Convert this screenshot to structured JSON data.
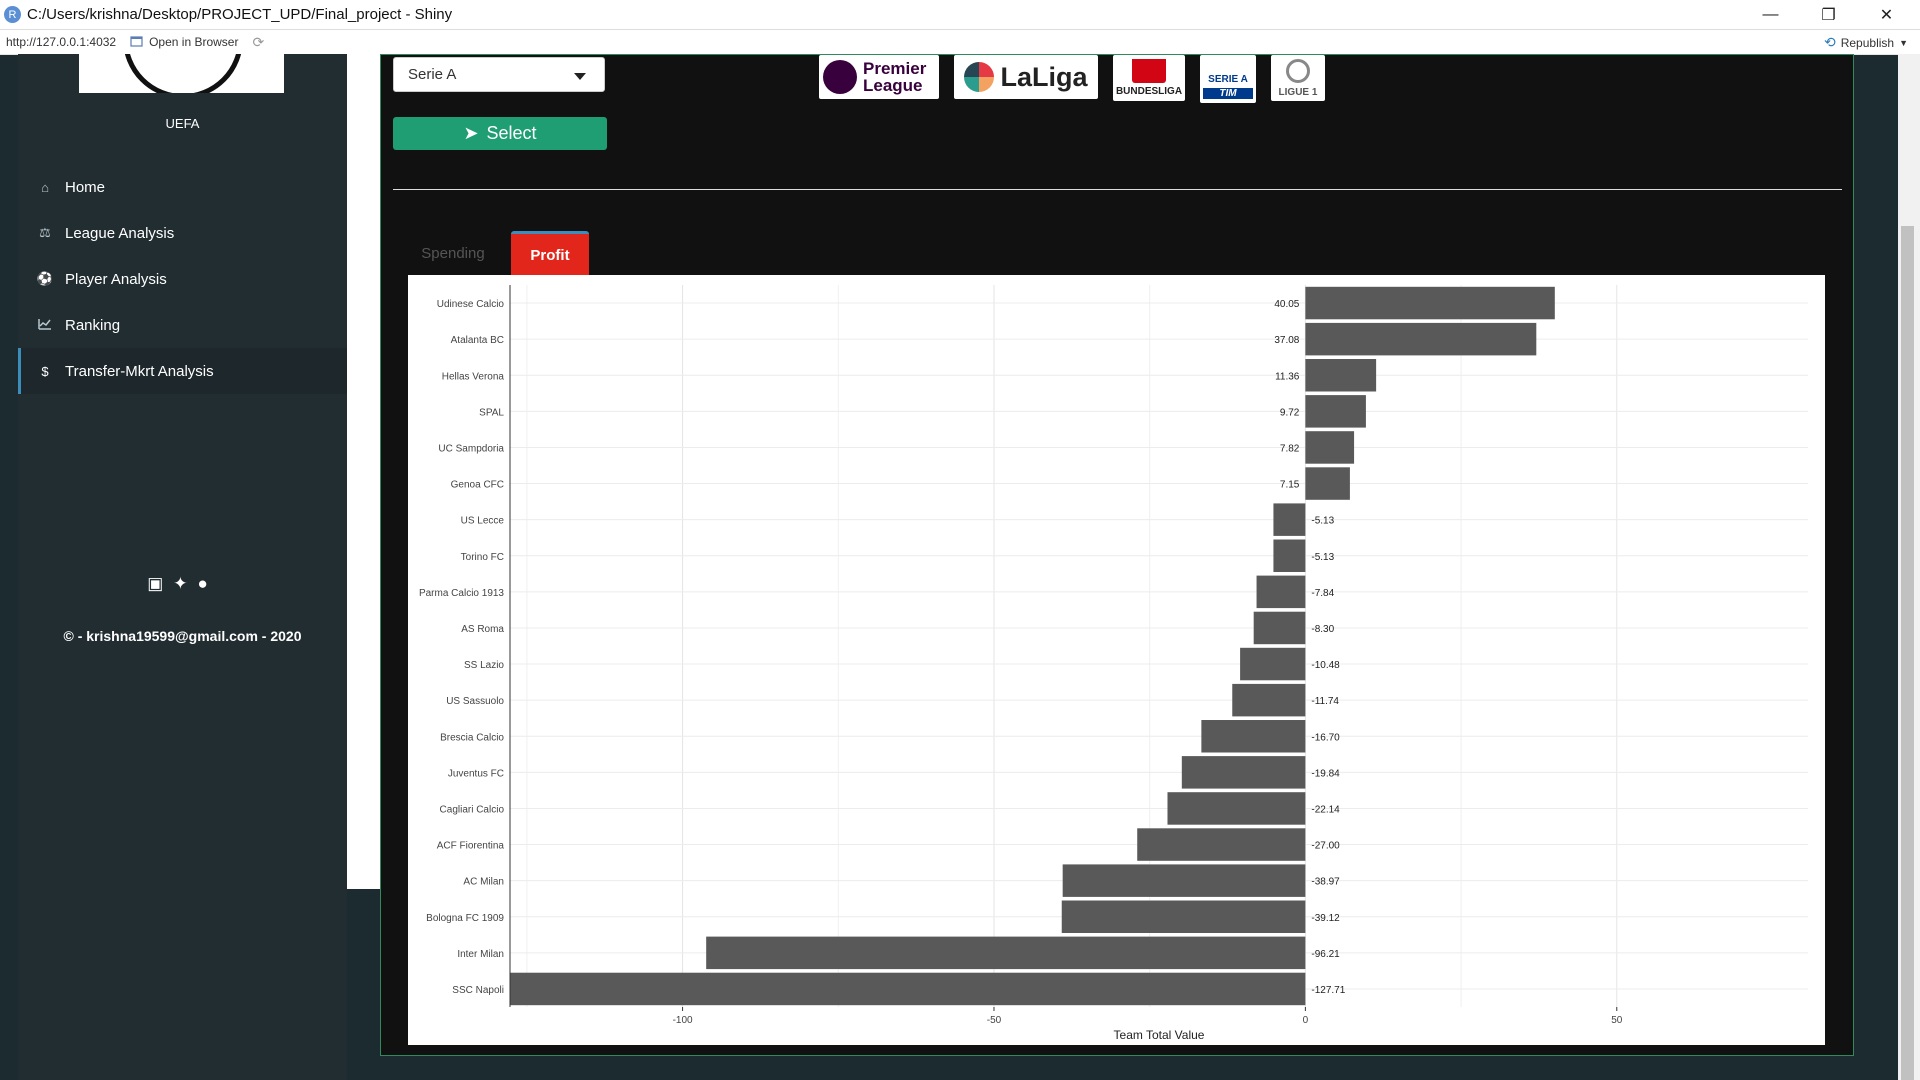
{
  "window": {
    "title": "C:/Users/krishna/Desktop/PROJECT_UPD/Final_project - Shiny",
    "app_icon": "R",
    "minimize": "—",
    "restore": "❐",
    "close": "✕"
  },
  "address_bar": {
    "url": "http://127.0.0.1:4032",
    "open_in_browser": "Open in Browser",
    "republish": "Republish"
  },
  "sidebar": {
    "brand": "UEFA",
    "items": [
      {
        "label": "Home",
        "icon": "home-icon"
      },
      {
        "label": "League Analysis",
        "icon": "balance-scale-icon"
      },
      {
        "label": "Player Analysis",
        "icon": "soccer-ball-icon"
      },
      {
        "label": "Ranking",
        "icon": "line-chart-icon"
      },
      {
        "label": "Transfer-Mkrt Analysis",
        "icon": "money-icon"
      }
    ],
    "active_item": "Transfer-Mkrt Analysis",
    "social_icons": [
      "linkedin-icon",
      "twitter-icon",
      "github-icon"
    ],
    "copyright": "© - krishna19599@gmail.com - 2020"
  },
  "controls": {
    "league_selected": "Serie A",
    "select_button": "Select"
  },
  "league_logos": {
    "premier_league": "Premier League",
    "laliga": "LaLiga",
    "bundesliga": "BUNDESLIGA",
    "serie_a": "SERIE A",
    "serie_a_sponsor": "TIM",
    "ligue1": "LIGUE 1"
  },
  "tabs": [
    {
      "label": "Spending",
      "active": false
    },
    {
      "label": "Profit",
      "active": true
    }
  ],
  "chart_data": {
    "type": "bar",
    "orientation": "horizontal",
    "categories": [
      "Udinese Calcio",
      "Atalanta BC",
      "Hellas Verona",
      "SPAL",
      "UC Sampdoria",
      "Genoa CFC",
      "US Lecce",
      "Torino FC",
      "Parma Calcio 1913",
      "AS Roma",
      "SS Lazio",
      "US Sassuolo",
      "Brescia Calcio",
      "Juventus FC",
      "Cagliari Calcio",
      "ACF Fiorentina",
      "AC Milan",
      "Bologna FC 1909",
      "Inter Milan",
      "SSC Napoli"
    ],
    "values": [
      40.05,
      37.08,
      11.36,
      9.72,
      7.82,
      7.15,
      -5.13,
      -5.13,
      -7.84,
      -8.3,
      -10.48,
      -11.74,
      -16.7,
      -19.84,
      -22.14,
      -27.0,
      -38.97,
      -39.12,
      -96.21,
      -127.71
    ],
    "value_labels": [
      "40.05",
      "37.08",
      "11.36",
      "9.72",
      "7.82",
      "7.15",
      "-5.13",
      "-5.13",
      "-7.84",
      "-8.30",
      "-10.48",
      "-11.74",
      "-16.70",
      "-19.84",
      "-22.14",
      "-27.00",
      "-38.97",
      "-39.12",
      "-96.21",
      "-127.71"
    ],
    "xlabel": "Team Total Value",
    "ylabel": "",
    "title": "",
    "xlim": [
      -127.71,
      50
    ],
    "xticks": [
      -100,
      -50,
      0,
      50
    ],
    "bar_color": "#595959",
    "grid": true
  }
}
